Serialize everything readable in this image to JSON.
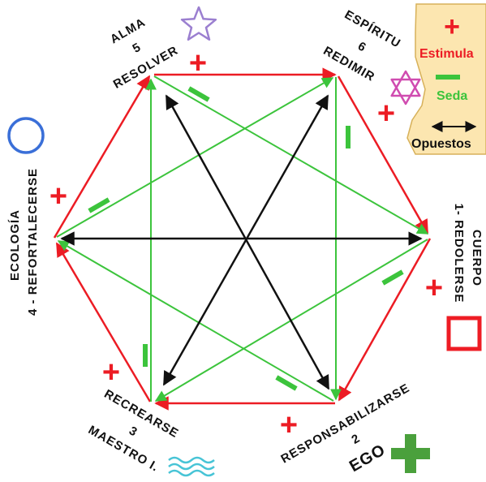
{
  "colors": {
    "stimulate": "#ec1c24",
    "sedate": "#3cc43c",
    "opposite": "#111111",
    "legend_bg": "#fce6b0",
    "legend_border": "#d7b15a",
    "circle": "#3a6fd8",
    "square": "#ee1c24",
    "star5": "#9b7fd0",
    "star6": "#d04cb0",
    "waves": "#47c4d6",
    "ego_plus": "#4aa03c"
  },
  "legend": {
    "plus_symbol": "+",
    "stimulate_label": "Estimula",
    "minus_symbol": "—",
    "sedate_label": "Seda",
    "arrow_symbol": "⟷",
    "opposite_label": "Opuestos"
  },
  "nodes": {
    "resolver": {
      "line1": "ALMA",
      "line2": "5",
      "line3": "RESOLVER"
    },
    "redimir": {
      "line1": "ESPÍRITU",
      "line2": "6",
      "line3": "REDIMIR"
    },
    "redolerse": {
      "line1": "CUERPO",
      "line2": "1- REDOLERSE"
    },
    "responsabilizarse": {
      "line1": "RESPONSABILIZARSE",
      "line2": "2",
      "line3": "EGO"
    },
    "recrearse": {
      "line1": "RECREARSE",
      "line2": "3",
      "line3": "MAESTRO I."
    },
    "refortalecerse": {
      "line1": "ECOLOGÍA",
      "line2": "4 - REFORTALECERSE"
    }
  },
  "edge_marks": {
    "plus": "+",
    "minus": "—"
  },
  "icons": [
    "star-5-icon",
    "star-6-icon",
    "circle-icon",
    "square-icon",
    "waves-icon",
    "plus-icon"
  ]
}
